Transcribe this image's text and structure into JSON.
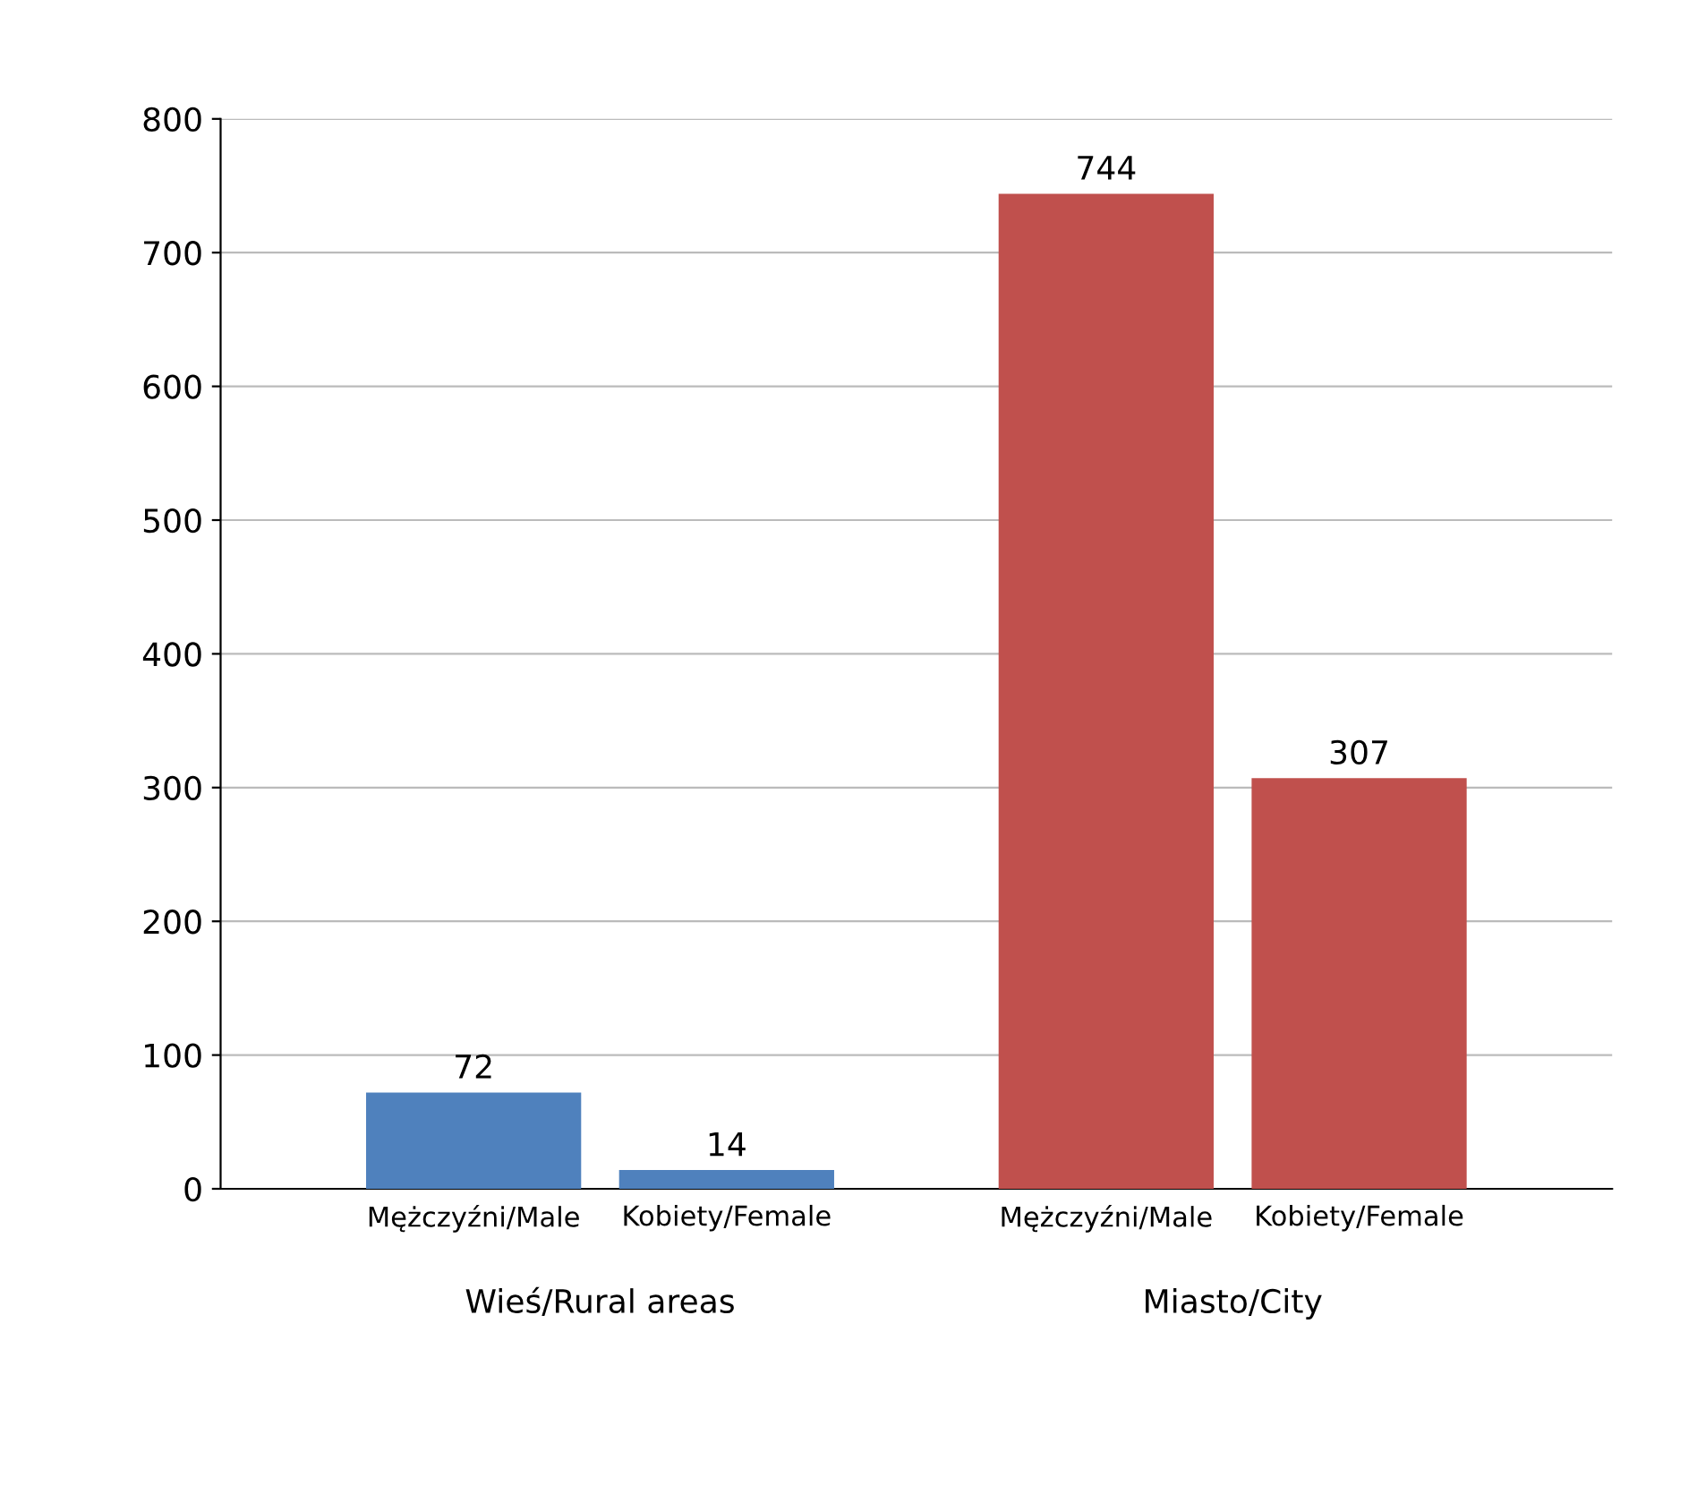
{
  "chart_data": {
    "type": "bar",
    "categories": [
      "Wieś/Rural areas",
      "Miasto/City"
    ],
    "series": [
      {
        "name": "Mężczyźni/Male",
        "colors": [
          "#4f81bd",
          "#c0504d"
        ],
        "values": [
          72,
          744
        ]
      },
      {
        "name": "Kobiety/Female",
        "colors": [
          "#4f81bd",
          "#c0504d"
        ],
        "values": [
          14,
          307
        ]
      }
    ],
    "ylim": [
      0,
      800
    ],
    "yticks": [
      0,
      100,
      200,
      300,
      400,
      500,
      600,
      700,
      800
    ],
    "grid": "y",
    "data_labels": true,
    "legend": false
  }
}
